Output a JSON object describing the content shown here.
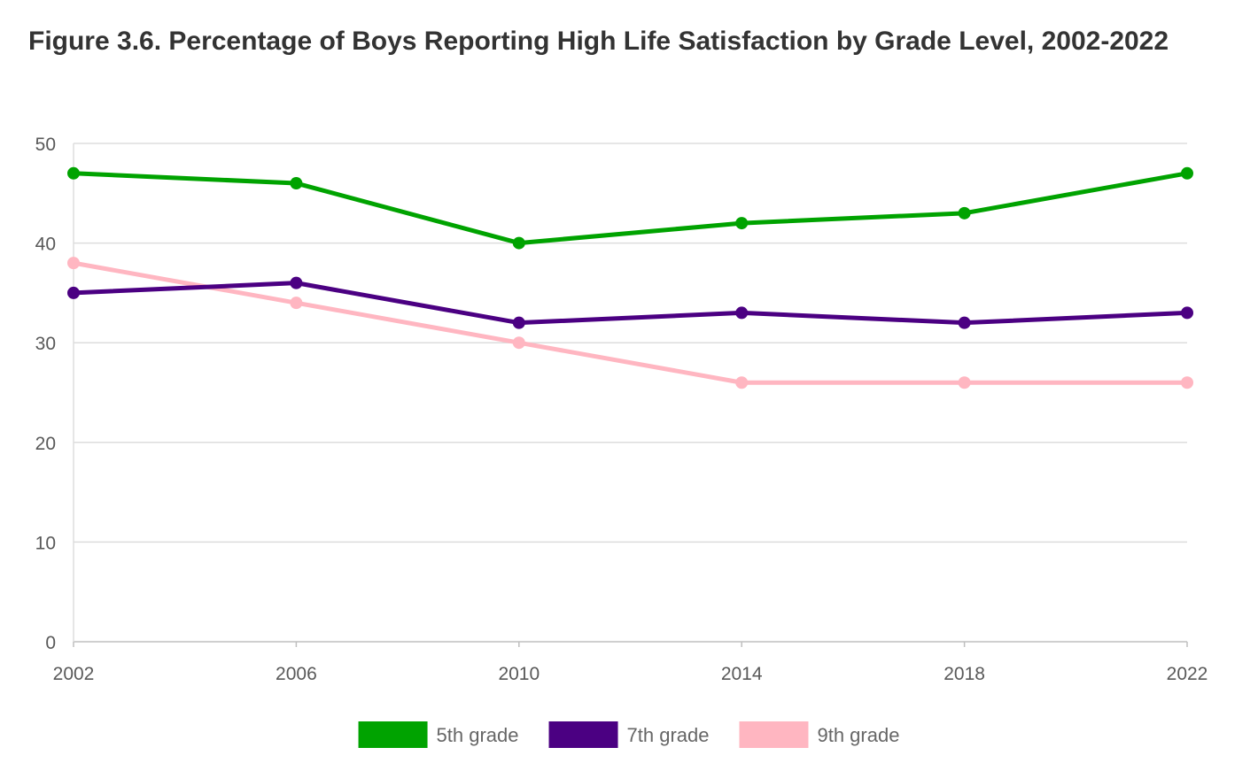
{
  "chart_data": {
    "type": "line",
    "title": "Figure 3.6. Percentage of Boys Reporting High Life Satisfaction by Grade Level, 2002-2022",
    "x": [
      "2002",
      "2006",
      "2010",
      "2014",
      "2018",
      "2022"
    ],
    "ylim": [
      0,
      50
    ],
    "yticks": [
      0,
      10,
      20,
      30,
      40,
      50
    ],
    "grid": true,
    "legend_position": "bottom",
    "series": [
      {
        "name": "5th grade",
        "color": "#00a300",
        "values": [
          47,
          46,
          40,
          42,
          43,
          47
        ]
      },
      {
        "name": "7th grade",
        "color": "#4b0082",
        "values": [
          35,
          36,
          32,
          33,
          32,
          33
        ]
      },
      {
        "name": "9th grade",
        "color": "#ffb6c1",
        "values": [
          38,
          34,
          30,
          26,
          26,
          26
        ]
      }
    ]
  }
}
